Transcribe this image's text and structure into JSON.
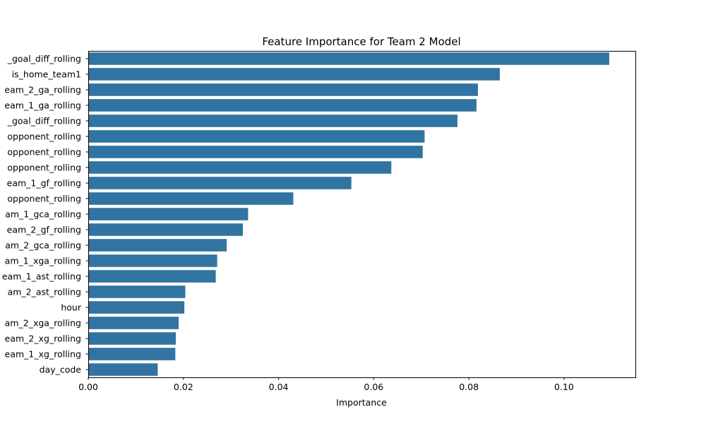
{
  "chart_data": {
    "type": "bar",
    "orientation": "horizontal",
    "title": "Feature Importance for Team 2 Model",
    "xlabel": "Importance",
    "ylabel": "",
    "xlim": [
      0,
      0.115
    ],
    "xticks": [
      "0.00",
      "0.02",
      "0.04",
      "0.06",
      "0.08",
      "0.10"
    ],
    "grid": false,
    "bar_color": "#3274a1",
    "categories": [
      "_goal_diff_rolling",
      "is_home_team1",
      "eam_2_ga_rolling",
      "eam_1_ga_rolling",
      "_goal_diff_rolling",
      "opponent_rolling",
      "opponent_rolling",
      "opponent_rolling",
      "eam_1_gf_rolling",
      "opponent_rolling",
      "am_1_gca_rolling",
      "eam_2_gf_rolling",
      "am_2_gca_rolling",
      "am_1_xga_rolling",
      "eam_1_ast_rolling",
      "am_2_ast_rolling",
      "hour",
      "am_2_xga_rolling",
      "eam_2_xg_rolling",
      "eam_1_xg_rolling",
      "day_code"
    ],
    "values": [
      0.1095,
      0.0865,
      0.0819,
      0.0816,
      0.0776,
      0.0707,
      0.0703,
      0.0637,
      0.0553,
      0.0431,
      0.0336,
      0.0325,
      0.0291,
      0.0271,
      0.0268,
      0.0204,
      0.0202,
      0.019,
      0.0184,
      0.0183,
      0.0146
    ]
  }
}
